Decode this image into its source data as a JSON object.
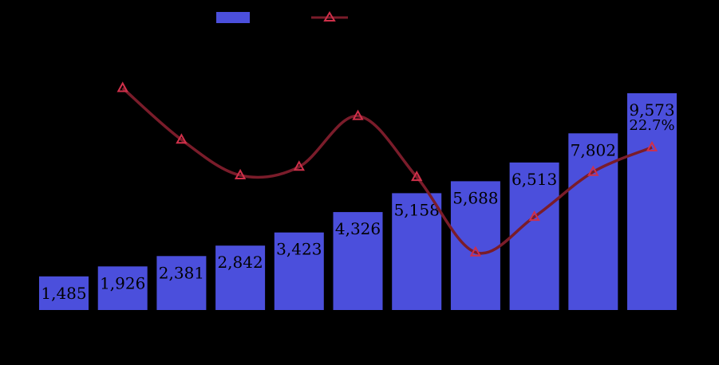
{
  "chart_data": {
    "type": "bar",
    "categories": [
      "",
      "",
      "",
      "",
      "",
      "",
      "",
      "",
      "",
      "",
      ""
    ],
    "series": [
      {
        "type": "bar",
        "values": [
          1485,
          1926,
          2381,
          2842,
          3423,
          4326,
          5158,
          5688,
          6513,
          7802,
          9573
        ],
        "labels": [
          "1,485",
          "1,926",
          "2,381",
          "2,842",
          "3,423",
          "4,326",
          "5,158",
          "5,688",
          "6,513",
          "7,802",
          "9,573"
        ],
        "color": "#4b4fdc"
      },
      {
        "type": "line",
        "values": [
          null,
          29.7,
          23.6,
          19.4,
          20.4,
          26.4,
          19.2,
          10.3,
          14.5,
          19.8,
          22.7
        ],
        "visible_labels": [
          "",
          "",
          "",
          "",
          "",
          "",
          "",
          "",
          "",
          "",
          "22.7%"
        ],
        "color": "#7a1c2a",
        "marker": "triangle",
        "marker_color": "#d0304a"
      }
    ],
    "legend": "top-center",
    "grid": false,
    "background": "#000000"
  }
}
